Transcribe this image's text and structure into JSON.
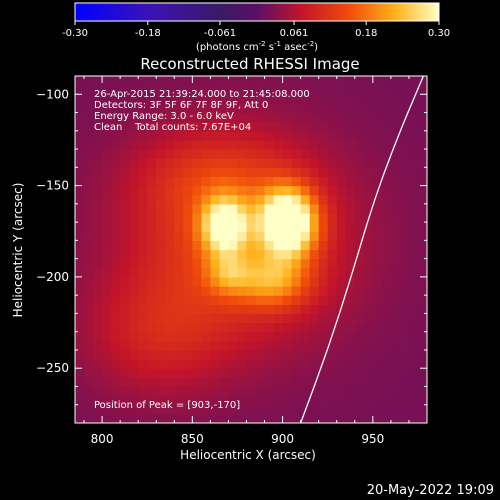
{
  "chart_data": {
    "type": "heatmap",
    "title": "Reconstructed RHESSI Image",
    "xlabel": "Heliocentric X (arcsec)",
    "ylabel": "Heliocentric Y (arcsec)",
    "xlim": [
      785,
      980
    ],
    "ylim": [
      -280,
      -90
    ],
    "x_ticks": [
      800,
      850,
      900,
      950
    ],
    "y_ticks": [
      -100,
      -150,
      -200,
      -250
    ],
    "colorbar": {
      "range": [
        -0.3,
        0.3
      ],
      "tick_values": [
        -0.3,
        -0.18,
        -0.061,
        0.061,
        0.18,
        0.3
      ],
      "tick_labels": [
        "-0.30",
        "-0.18",
        "-0.061",
        "0.061",
        "0.18",
        "0.30"
      ],
      "units_parts": [
        "(photons cm",
        "-2",
        " s",
        "-1",
        " asec",
        "-2",
        ")"
      ]
    },
    "annotations": [
      "26-Apr-2015 21:39:24.000 to 21:45:08.000",
      "Detectors: 3F 5F 6F 7F 8F 9F, Att 0",
      "Energy Range: 3.0 - 6.0 keV",
      "Clean    Total counts: 7.67E+04"
    ],
    "peak_label": "Position of Peak = [903,-170]",
    "peak": [
      903,
      -170
    ],
    "sources": [
      {
        "x": 903,
        "y": -170,
        "amp": 0.3,
        "sx": 11,
        "sy": 13
      },
      {
        "x": 868,
        "y": -172,
        "amp": 0.22,
        "sx": 9,
        "sy": 11
      },
      {
        "x": 895,
        "y": -202,
        "amp": 0.12,
        "sx": 14,
        "sy": 10
      },
      {
        "x": 870,
        "y": -198,
        "amp": 0.09,
        "sx": 9,
        "sy": 8
      },
      {
        "x": 875,
        "y": -180,
        "amp": 0.12,
        "sx": 42,
        "sy": 38
      },
      {
        "x": 830,
        "y": -232,
        "amp": 0.06,
        "sx": 28,
        "sy": 24
      },
      {
        "x": 860,
        "y": -145,
        "amp": 0.05,
        "sx": 30,
        "sy": 18
      }
    ],
    "background_level": 0.02,
    "limb_curve": [
      [
        978,
        -90
      ],
      [
        963,
        -125
      ],
      [
        950,
        -160
      ],
      [
        938,
        -200
      ],
      [
        925,
        -240
      ],
      [
        910,
        -280
      ]
    ],
    "date_stamp": "20-May-2022 19:09"
  }
}
